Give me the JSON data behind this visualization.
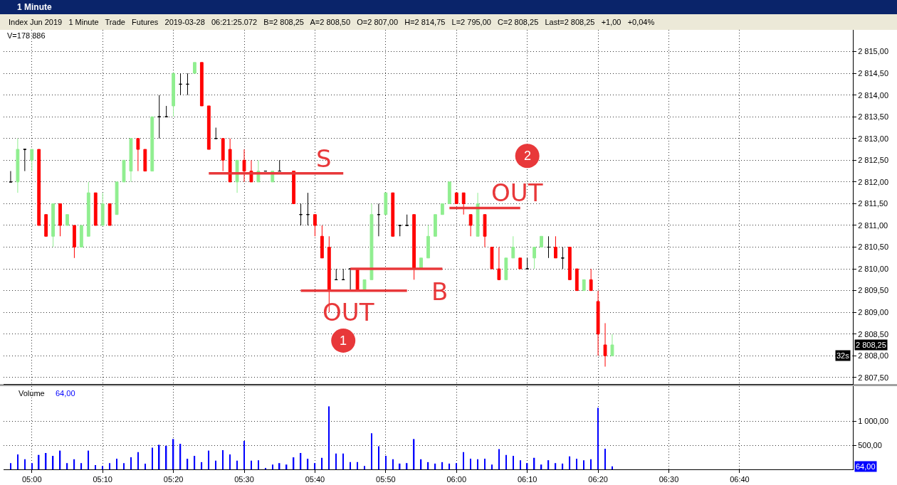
{
  "chart_data": [
    {
      "type": "candlestick",
      "title": "1 Minute",
      "subtitle": "Index Jun 2019   1 Minute   Trade   Futures   2019-03-28   06:21:25.072   B=2 808,25   A=2 808,50   O=2 807,00   H=2 814,75   L=2 795,00   C=2 808,25   Last=2 808,25   +1,00   +0,04%",
      "x": [
        "2019-03-28T04:57",
        "2019-03-28T04:58",
        "2019-03-28T04:59",
        "2019-03-28T05:00",
        "2019-03-28T05:01",
        "2019-03-28T05:02",
        "2019-03-28T05:03",
        "2019-03-28T05:04",
        "2019-03-28T05:05",
        "2019-03-28T05:06",
        "2019-03-28T05:07",
        "2019-03-28T05:08",
        "2019-03-28T05:09",
        "2019-03-28T05:10",
        "2019-03-28T05:11",
        "2019-03-28T05:12",
        "2019-03-28T05:13",
        "2019-03-28T05:14",
        "2019-03-28T05:15",
        "2019-03-28T05:16",
        "2019-03-28T05:17",
        "2019-03-28T05:18",
        "2019-03-28T05:19",
        "2019-03-28T05:20",
        "2019-03-28T05:21",
        "2019-03-28T05:22",
        "2019-03-28T05:23",
        "2019-03-28T05:24",
        "2019-03-28T05:25",
        "2019-03-28T05:26",
        "2019-03-28T05:27",
        "2019-03-28T05:28",
        "2019-03-28T05:29",
        "2019-03-28T05:30",
        "2019-03-28T05:31",
        "2019-03-28T05:32",
        "2019-03-28T05:33",
        "2019-03-28T05:34",
        "2019-03-28T05:35",
        "2019-03-28T05:37",
        "2019-03-28T05:38",
        "2019-03-28T05:39",
        "2019-03-28T05:40",
        "2019-03-28T05:41",
        "2019-03-28T05:42",
        "2019-03-28T05:43",
        "2019-03-28T05:44",
        "2019-03-28T05:45",
        "2019-03-28T05:46",
        "2019-03-28T05:47",
        "2019-03-28T05:48",
        "2019-03-28T05:49",
        "2019-03-28T05:50",
        "2019-03-28T05:51",
        "2019-03-28T05:52",
        "2019-03-28T05:53",
        "2019-03-28T05:54",
        "2019-03-28T05:55",
        "2019-03-28T05:56",
        "2019-03-28T05:57",
        "2019-03-28T05:58",
        "2019-03-28T05:59",
        "2019-03-28T06:00",
        "2019-03-28T06:01",
        "2019-03-28T06:02",
        "2019-03-28T06:03",
        "2019-03-28T06:04",
        "2019-03-28T06:05",
        "2019-03-28T06:06",
        "2019-03-28T06:07",
        "2019-03-28T06:08",
        "2019-03-28T06:09",
        "2019-03-28T06:10",
        "2019-03-28T06:11",
        "2019-03-28T06:12",
        "2019-03-28T06:13",
        "2019-03-28T06:14",
        "2019-03-28T06:15",
        "2019-03-28T06:16",
        "2019-03-28T06:17",
        "2019-03-28T06:18",
        "2019-03-28T06:19",
        "2019-03-28T06:20",
        "2019-03-28T06:21",
        "2019-03-28T06:22"
      ],
      "ohlc": [
        [
          2812.0,
          2812.25,
          2812.0,
          2812.0
        ],
        [
          2812.0,
          2813.0,
          2811.75,
          2812.75
        ],
        [
          2812.75,
          2812.75,
          2812.25,
          2812.75
        ],
        [
          2812.5,
          2812.75,
          2812.25,
          2812.75
        ],
        [
          2812.75,
          2812.75,
          2811.0,
          2811.0
        ],
        [
          2811.25,
          2811.25,
          2810.75,
          2810.75
        ],
        [
          2810.75,
          2811.5,
          2810.5,
          2811.5
        ],
        [
          2811.5,
          2811.5,
          2810.75,
          2811.0
        ],
        [
          2811.0,
          2811.25,
          2811.0,
          2811.25
        ],
        [
          2811.0,
          2811.0,
          2810.25,
          2810.5
        ],
        [
          2810.5,
          2811.0,
          2810.5,
          2811.0
        ],
        [
          2810.75,
          2812.0,
          2810.75,
          2811.75
        ],
        [
          2811.75,
          2811.75,
          2811.0,
          2811.0
        ],
        [
          2811.0,
          2811.75,
          2811.0,
          2811.5
        ],
        [
          2811.5,
          2811.5,
          2811.0,
          2811.0
        ],
        [
          2811.25,
          2812.0,
          2811.25,
          2812.0
        ],
        [
          2812.0,
          2812.5,
          2812.0,
          2812.5
        ],
        [
          2812.25,
          2813.0,
          2812.0,
          2813.0
        ],
        [
          2813.0,
          2813.0,
          2812.25,
          2812.75
        ],
        [
          2812.75,
          2812.75,
          2812.25,
          2812.25
        ],
        [
          2812.25,
          2813.5,
          2812.25,
          2813.5
        ],
        [
          2813.5,
          2814.0,
          2813.0,
          2813.5
        ],
        [
          2813.5,
          2813.75,
          2813.5,
          2813.5
        ],
        [
          2813.75,
          2814.5,
          2813.5,
          2814.5
        ],
        [
          2814.25,
          2814.5,
          2814.0,
          2814.25
        ],
        [
          2814.25,
          2814.5,
          2814.0,
          2814.25
        ],
        [
          2814.5,
          2814.75,
          2814.5,
          2814.75
        ],
        [
          2814.75,
          2814.75,
          2813.75,
          2813.75
        ],
        [
          2813.75,
          2813.75,
          2812.75,
          2812.75
        ],
        [
          2813.0,
          2813.25,
          2813.0,
          2813.0
        ],
        [
          2813.0,
          2813.0,
          2812.25,
          2812.5
        ],
        [
          2812.75,
          2813.0,
          2812.0,
          2812.0
        ],
        [
          2812.0,
          2812.5,
          2811.75,
          2812.5
        ],
        [
          2812.5,
          2812.75,
          2812.0,
          2812.25
        ],
        [
          2812.25,
          2812.5,
          2812.0,
          2812.0
        ],
        [
          2812.0,
          2812.5,
          2812.0,
          2812.25
        ],
        [
          2812.25,
          2812.25,
          2812.25,
          2812.25
        ],
        [
          2812.0,
          2812.25,
          2812.0,
          2812.25
        ],
        [
          2812.25,
          2812.5,
          2812.25,
          2812.25
        ],
        [
          2812.25,
          2812.25,
          2811.5,
          2811.5
        ],
        [
          2811.25,
          2811.5,
          2811.0,
          2811.25
        ],
        [
          2811.25,
          2811.75,
          2811.0,
          2811.25
        ],
        [
          2811.25,
          2811.25,
          2810.75,
          2811.0
        ],
        [
          2810.75,
          2811.0,
          2810.25,
          2810.25
        ],
        [
          2810.5,
          2810.75,
          2809.0,
          2809.5
        ],
        [
          2809.75,
          2810.0,
          2809.75,
          2809.75
        ],
        [
          2809.75,
          2810.0,
          2809.75,
          2809.75
        ],
        [
          2810.0,
          2810.0,
          2809.5,
          2810.0
        ],
        [
          2810.0,
          2810.0,
          2809.5,
          2809.5
        ],
        [
          2809.5,
          2809.75,
          2809.5,
          2809.75
        ],
        [
          2809.75,
          2811.5,
          2809.75,
          2811.25
        ],
        [
          2811.25,
          2811.5,
          2810.75,
          2811.25
        ],
        [
          2811.25,
          2811.75,
          2811.25,
          2811.75
        ],
        [
          2811.75,
          2811.75,
          2810.75,
          2810.75
        ],
        [
          2811.0,
          2811.0,
          2810.75,
          2811.0
        ],
        [
          2811.0,
          2811.25,
          2811.0,
          2811.0
        ],
        [
          2811.25,
          2811.25,
          2809.75,
          2810.0
        ],
        [
          2810.0,
          2810.25,
          2810.0,
          2810.25
        ],
        [
          2810.25,
          2811.0,
          2810.25,
          2810.75
        ],
        [
          2810.75,
          2811.25,
          2810.75,
          2811.25
        ],
        [
          2811.25,
          2811.5,
          2811.25,
          2811.5
        ],
        [
          2811.5,
          2812.0,
          2811.5,
          2812.0
        ],
        [
          2811.75,
          2811.75,
          2811.5,
          2811.5
        ],
        [
          2811.75,
          2811.75,
          2811.25,
          2811.5
        ],
        [
          2811.25,
          2811.25,
          2810.75,
          2811.0
        ],
        [
          2810.75,
          2811.75,
          2810.75,
          2811.5
        ],
        [
          2811.25,
          2811.25,
          2810.5,
          2810.75
        ],
        [
          2810.5,
          2810.5,
          2810.0,
          2810.0
        ],
        [
          2810.0,
          2810.5,
          2809.75,
          2809.75
        ],
        [
          2809.75,
          2810.25,
          2809.75,
          2810.25
        ],
        [
          2810.25,
          2810.75,
          2810.25,
          2810.5
        ],
        [
          2810.25,
          2810.25,
          2810.0,
          2810.0
        ],
        [
          2810.0,
          2810.25,
          2810.0,
          2810.0
        ],
        [
          2810.25,
          2810.5,
          2810.0,
          2810.5
        ],
        [
          2810.5,
          2810.75,
          2810.5,
          2810.75
        ],
        [
          2810.5,
          2810.75,
          2810.25,
          2810.5
        ],
        [
          2810.5,
          2810.75,
          2810.25,
          2810.25
        ],
        [
          2810.25,
          2810.5,
          2810.0,
          2810.25
        ],
        [
          2810.5,
          2810.5,
          2809.75,
          2809.75
        ],
        [
          2810.0,
          2810.0,
          2809.5,
          2809.5
        ],
        [
          2809.5,
          2809.75,
          2809.5,
          2809.75
        ],
        [
          2809.75,
          2810.0,
          2809.5,
          2809.5
        ],
        [
          2809.25,
          2809.5,
          2808.0,
          2808.5
        ],
        [
          2808.25,
          2808.75,
          2807.75,
          2808.0
        ],
        [
          2808.0,
          2808.5,
          2808.0,
          2808.25
        ]
      ],
      "colors": [
        "#000000",
        "#90ee90",
        "#000000",
        "#90ee90",
        "#ff0000",
        "#ff0000",
        "#90ee90",
        "#ff0000",
        "#90ee90",
        "#ff0000",
        "#90ee90",
        "#90ee90",
        "#ff0000",
        "#90ee90",
        "#ff0000",
        "#90ee90",
        "#90ee90",
        "#90ee90",
        "#ff0000",
        "#ff0000",
        "#90ee90",
        "#000000",
        "#000000",
        "#90ee90",
        "#000000",
        "#000000",
        "#90ee90",
        "#ff0000",
        "#ff0000",
        "#000000",
        "#ff0000",
        "#ff0000",
        "#90ee90",
        "#ff0000",
        "#ff0000",
        "#90ee90",
        "#000000",
        "#90ee90",
        "#000000",
        "#ff0000",
        "#000000",
        "#000000",
        "#ff0000",
        "#ff0000",
        "#ff0000",
        "#000000",
        "#000000",
        "#000000",
        "#ff0000",
        "#90ee90",
        "#90ee90",
        "#000000",
        "#90ee90",
        "#ff0000",
        "#000000",
        "#000000",
        "#ff0000",
        "#90ee90",
        "#90ee90",
        "#90ee90",
        "#90ee90",
        "#90ee90",
        "#ff0000",
        "#ff0000",
        "#ff0000",
        "#90ee90",
        "#ff0000",
        "#ff0000",
        "#ff0000",
        "#90ee90",
        "#90ee90",
        "#ff0000",
        "#000000",
        "#90ee90",
        "#90ee90",
        "#000000",
        "#ff0000",
        "#000000",
        "#ff0000",
        "#ff0000",
        "#90ee90",
        "#ff0000",
        "#ff0000",
        "#ff0000",
        "#90ee90"
      ],
      "series": [
        {
          "type": "line",
          "color": "#e8383a",
          "x": [
            "2019-03-28T05:25",
            "2019-03-28T05:44"
          ],
          "values": [
            2812.2,
            2812.2
          ]
        },
        {
          "type": "line",
          "color": "#e8383a",
          "x": [
            "2019-03-28T05:38",
            "2019-03-28T05:53"
          ],
          "values": [
            2809.5,
            2809.5
          ]
        },
        {
          "type": "line",
          "color": "#e8383a",
          "x": [
            "2019-03-28T05:45",
            "2019-03-28T05:58"
          ],
          "values": [
            2810.0,
            2810.0
          ]
        },
        {
          "type": "line",
          "color": "#e8383a",
          "x": [
            "2019-03-28T05:59",
            "2019-03-28T06:09"
          ],
          "values": [
            2811.4,
            2811.4
          ]
        }
      ],
      "annotations": [
        "V=178 886",
        "S",
        "OUT",
        "B",
        "OUT",
        {
          "text": "1",
          "x": "2019-03-28T05:44",
          "y": 2808.35
        },
        {
          "text": "2",
          "x": "2019-03-28T06:10",
          "y": 2812.6
        },
        "2 808,25",
        "32s"
      ],
      "xlim": [
        "2019-03-28T04:56",
        "2019-03-28T06:56"
      ],
      "xticks": [
        {
          "value": "2019-03-28T05:00",
          "label": null
        },
        {
          "value": "2019-03-28T05:10",
          "label": null
        },
        {
          "value": "2019-03-28T05:20",
          "label": null
        },
        {
          "value": "2019-03-28T05:30",
          "label": null
        },
        {
          "value": "2019-03-28T05:40",
          "label": null
        },
        {
          "value": "2019-03-28T05:50",
          "label": null
        },
        {
          "value": "2019-03-28T06:00",
          "label": null
        },
        {
          "value": "2019-03-28T06:10",
          "label": null
        },
        {
          "value": "2019-03-28T06:20",
          "label": null
        },
        {
          "value": "2019-03-28T06:30",
          "label": null
        },
        {
          "value": "2019-03-28T06:40",
          "label": null
        }
      ],
      "ylim": [
        2807.35,
        2815.5
      ],
      "yticks": [
        {
          "value": 2807.5,
          "label": "2 807,50"
        },
        {
          "value": 2808.0,
          "label": "2 808,00"
        },
        {
          "value": 2808.5,
          "label": "2 808,50"
        },
        {
          "value": 2809.0,
          "label": "2 809,00"
        },
        {
          "value": 2809.5,
          "label": "2 809,50"
        },
        {
          "value": 2810.0,
          "label": "2 810,00"
        },
        {
          "value": 2810.5,
          "label": "2 810,50"
        },
        {
          "value": 2811.0,
          "label": "2 811,00"
        },
        {
          "value": 2811.5,
          "label": "2 811,50"
        },
        {
          "value": 2812.0,
          "label": "2 812,00"
        },
        {
          "value": 2812.5,
          "label": "2 812,50"
        },
        {
          "value": 2813.0,
          "label": "2 813,00"
        },
        {
          "value": 2813.5,
          "label": "2 813,50"
        },
        {
          "value": 2814.0,
          "label": "2 814,00"
        },
        {
          "value": 2814.5,
          "label": "2 814,50"
        },
        {
          "value": 2815.0,
          "label": "2 815,00"
        }
      ],
      "grid": true,
      "tick_labels": "y"
    },
    {
      "type": "bar",
      "title": "Volume",
      "color": "#0000ff",
      "x": [
        "2019-03-28T04:57",
        "2019-03-28T04:58",
        "2019-03-28T04:59",
        "2019-03-28T05:00",
        "2019-03-28T05:01",
        "2019-03-28T05:02",
        "2019-03-28T05:03",
        "2019-03-28T05:04",
        "2019-03-28T05:05",
        "2019-03-28T05:06",
        "2019-03-28T05:07",
        "2019-03-28T05:08",
        "2019-03-28T05:09",
        "2019-03-28T05:10",
        "2019-03-28T05:11",
        "2019-03-28T05:12",
        "2019-03-28T05:13",
        "2019-03-28T05:14",
        "2019-03-28T05:15",
        "2019-03-28T05:16",
        "2019-03-28T05:17",
        "2019-03-28T05:18",
        "2019-03-28T05:19",
        "2019-03-28T05:20",
        "2019-03-28T05:21",
        "2019-03-28T05:22",
        "2019-03-28T05:23",
        "2019-03-28T05:24",
        "2019-03-28T05:25",
        "2019-03-28T05:26",
        "2019-03-28T05:27",
        "2019-03-28T05:28",
        "2019-03-28T05:29",
        "2019-03-28T05:30",
        "2019-03-28T05:31",
        "2019-03-28T05:32",
        "2019-03-28T05:33",
        "2019-03-28T05:34",
        "2019-03-28T05:35",
        "2019-03-28T05:36",
        "2019-03-28T05:37",
        "2019-03-28T05:38",
        "2019-03-28T05:39",
        "2019-03-28T05:40",
        "2019-03-28T05:41",
        "2019-03-28T05:42",
        "2019-03-28T05:43",
        "2019-03-28T05:44",
        "2019-03-28T05:45",
        "2019-03-28T05:46",
        "2019-03-28T05:47",
        "2019-03-28T05:48",
        "2019-03-28T05:49",
        "2019-03-28T05:50",
        "2019-03-28T05:51",
        "2019-03-28T05:52",
        "2019-03-28T05:53",
        "2019-03-28T05:54",
        "2019-03-28T05:55",
        "2019-03-28T05:56",
        "2019-03-28T05:57",
        "2019-03-28T05:58",
        "2019-03-28T05:59",
        "2019-03-28T06:00",
        "2019-03-28T06:01",
        "2019-03-28T06:02",
        "2019-03-28T06:03",
        "2019-03-28T06:04",
        "2019-03-28T06:05",
        "2019-03-28T06:06",
        "2019-03-28T06:07",
        "2019-03-28T06:08",
        "2019-03-28T06:09",
        "2019-03-28T06:10",
        "2019-03-28T06:11",
        "2019-03-28T06:12",
        "2019-03-28T06:13",
        "2019-03-28T06:14",
        "2019-03-28T06:15",
        "2019-03-28T06:16",
        "2019-03-28T06:17",
        "2019-03-28T06:18",
        "2019-03-28T06:19",
        "2019-03-28T06:20",
        "2019-03-28T06:21",
        "2019-03-28T06:22"
      ],
      "values": [
        130,
        310,
        210,
        130,
        300,
        340,
        280,
        390,
        130,
        210,
        130,
        390,
        90,
        70,
        130,
        220,
        130,
        250,
        360,
        120,
        450,
        510,
        490,
        630,
        530,
        220,
        280,
        150,
        390,
        180,
        400,
        310,
        180,
        590,
        180,
        190,
        30,
        100,
        130,
        100,
        250,
        340,
        220,
        130,
        240,
        1310,
        330,
        330,
        150,
        150,
        70,
        750,
        480,
        280,
        210,
        120,
        130,
        630,
        210,
        150,
        120,
        150,
        120,
        130,
        360,
        220,
        210,
        220,
        100,
        420,
        300,
        280,
        190,
        130,
        240,
        100,
        190,
        130,
        120,
        270,
        220,
        190,
        210,
        1280,
        430,
        64
      ],
      "annotations": [
        "64,00",
        "64,00"
      ],
      "xlim": [
        "2019-03-28T04:56",
        "2019-03-28T06:56"
      ],
      "xticks": [
        {
          "value": "2019-03-28T05:00",
          "label": "05:00"
        },
        {
          "value": "2019-03-28T05:10",
          "label": "05:10"
        },
        {
          "value": "2019-03-28T05:20",
          "label": "05:20"
        },
        {
          "value": "2019-03-28T05:30",
          "label": "05:30"
        },
        {
          "value": "2019-03-28T05:40",
          "label": "05:40"
        },
        {
          "value": "2019-03-28T05:50",
          "label": "05:50"
        },
        {
          "value": "2019-03-28T06:00",
          "label": "06:00"
        },
        {
          "value": "2019-03-28T06:10",
          "label": "06:10"
        },
        {
          "value": "2019-03-28T06:20",
          "label": "06:20"
        },
        {
          "value": "2019-03-28T06:30",
          "label": "06:30"
        },
        {
          "value": "2019-03-28T06:40",
          "label": "06:40"
        }
      ],
      "ylim": [
        0,
        1730
      ],
      "yticks": [
        {
          "value": 500,
          "label": "500,00"
        },
        {
          "value": 1000,
          "label": "1 000,00"
        }
      ],
      "grid": true
    }
  ]
}
